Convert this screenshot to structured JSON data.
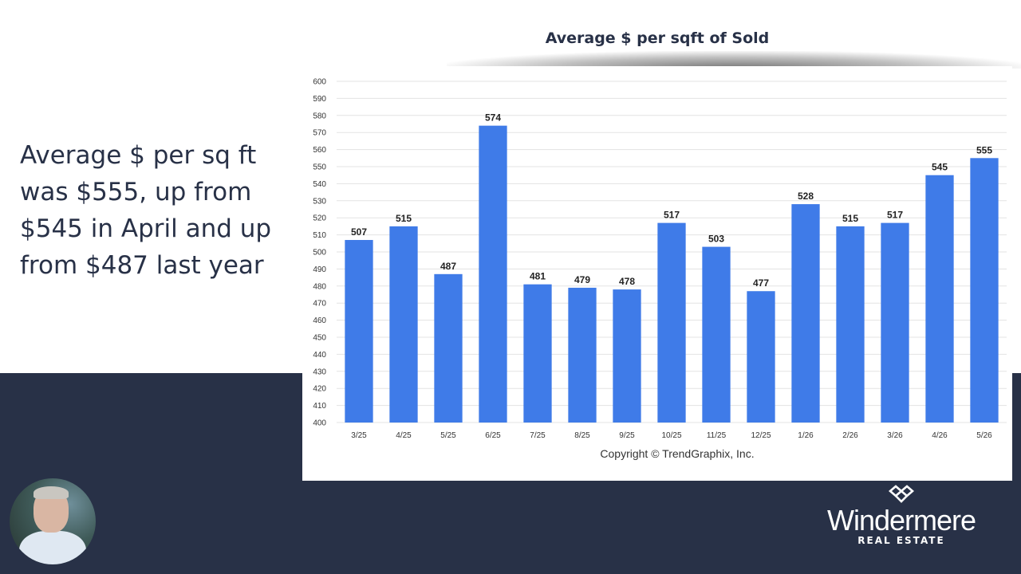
{
  "headline": "Average $ per sq ft was $555, up from $545 in April and up from $487 last year",
  "chart_data": {
    "type": "bar",
    "title": "Average $ per sqft of Sold",
    "xlabel": "",
    "ylabel": "",
    "categories": [
      "3/25",
      "4/25",
      "5/25",
      "6/25",
      "7/25",
      "8/25",
      "9/25",
      "10/25",
      "11/25",
      "12/25",
      "1/26",
      "2/26",
      "3/26",
      "4/26",
      "5/26"
    ],
    "values": [
      507,
      515,
      487,
      574,
      481,
      479,
      478,
      517,
      503,
      477,
      528,
      515,
      517,
      545,
      555
    ],
    "ylim": [
      400,
      600
    ],
    "yticks": [
      400,
      410,
      420,
      430,
      440,
      450,
      460,
      470,
      480,
      490,
      500,
      510,
      520,
      530,
      540,
      550,
      560,
      570,
      580,
      590,
      600
    ],
    "data_labels": true,
    "grid": true,
    "bar_color": "#3f7be8",
    "copyright": "Copyright © TrendGraphix, Inc."
  },
  "presenter": {
    "icon": "presenter-avatar"
  },
  "brand": {
    "name": "Windermere",
    "subtitle": "REAL ESTATE",
    "icon": "windermere-logo-mark",
    "band_color": "#283147"
  }
}
